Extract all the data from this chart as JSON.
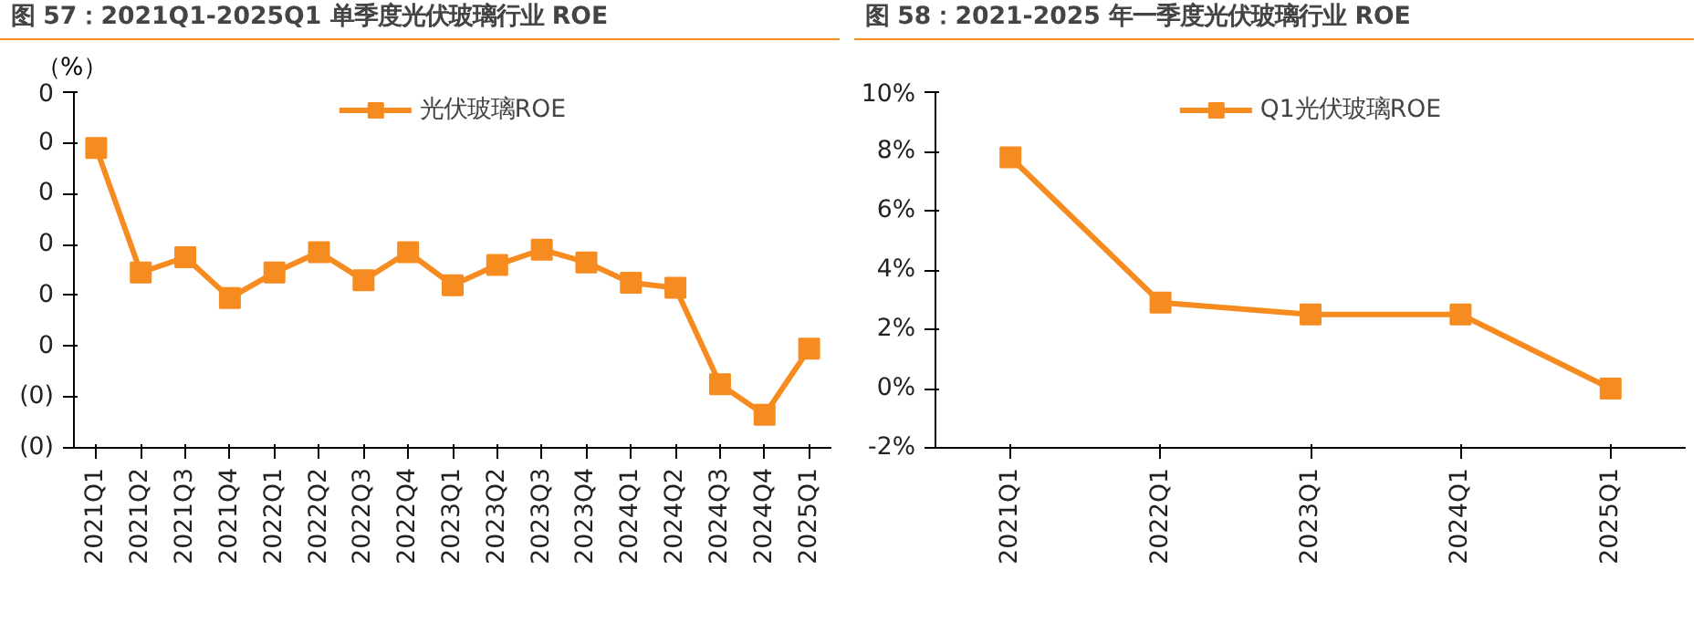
{
  "chart_data": [
    {
      "type": "line",
      "title": "图 57：2021Q1-2025Q1 单季度光伏玻璃行业 ROE",
      "ylabel": "（%）",
      "legend": "top",
      "marker": "square",
      "categories": [
        "2021Q1",
        "2021Q2",
        "2021Q3",
        "2021Q4",
        "2022Q1",
        "2022Q2",
        "2022Q3",
        "2022Q4",
        "2023Q1",
        "2023Q2",
        "2023Q3",
        "2023Q4",
        "2024Q1",
        "2024Q2",
        "2024Q3",
        "2024Q4",
        "2025Q1"
      ],
      "series": [
        {
          "name": "光伏玻璃ROE",
          "color": "#f68b1f",
          "values": [
            0.078,
            0.029,
            0.035,
            0.019,
            0.029,
            0.037,
            0.026,
            0.037,
            0.024,
            0.032,
            0.038,
            0.033,
            0.025,
            0.023,
            -0.015,
            -0.027,
            -0.001
          ]
        }
      ],
      "ylim": [
        -0.04,
        0.1
      ],
      "yticks": [
        {
          "value": -0.04,
          "label": "(0)"
        },
        {
          "value": -0.02,
          "label": "(0)"
        },
        {
          "value": 0,
          "label": "0"
        },
        {
          "value": 0.02,
          "label": "0"
        },
        {
          "value": 0.04,
          "label": "0"
        },
        {
          "value": 0.06,
          "label": "0"
        },
        {
          "value": 0.08,
          "label": "0"
        },
        {
          "value": 0.1,
          "label": "0"
        }
      ]
    },
    {
      "type": "line",
      "title": "图 58：2021-2025 年一季度光伏玻璃行业 ROE",
      "legend": "top",
      "marker": "square",
      "categories": [
        "2021Q1",
        "2022Q1",
        "2023Q1",
        "2024Q1",
        "2025Q1"
      ],
      "series": [
        {
          "name": "Q1光伏玻璃ROE",
          "color": "#f68b1f",
          "values": [
            7.8,
            2.9,
            2.5,
            2.5,
            0.0
          ]
        }
      ],
      "ylim": [
        -2,
        10
      ],
      "yticks": [
        {
          "value": -2,
          "label": "-2%"
        },
        {
          "value": 0,
          "label": "0%"
        },
        {
          "value": 2,
          "label": "2%"
        },
        {
          "value": 4,
          "label": "4%"
        },
        {
          "value": 6,
          "label": "6%"
        },
        {
          "value": 8,
          "label": "8%"
        },
        {
          "value": 10,
          "label": "10%"
        }
      ]
    }
  ]
}
